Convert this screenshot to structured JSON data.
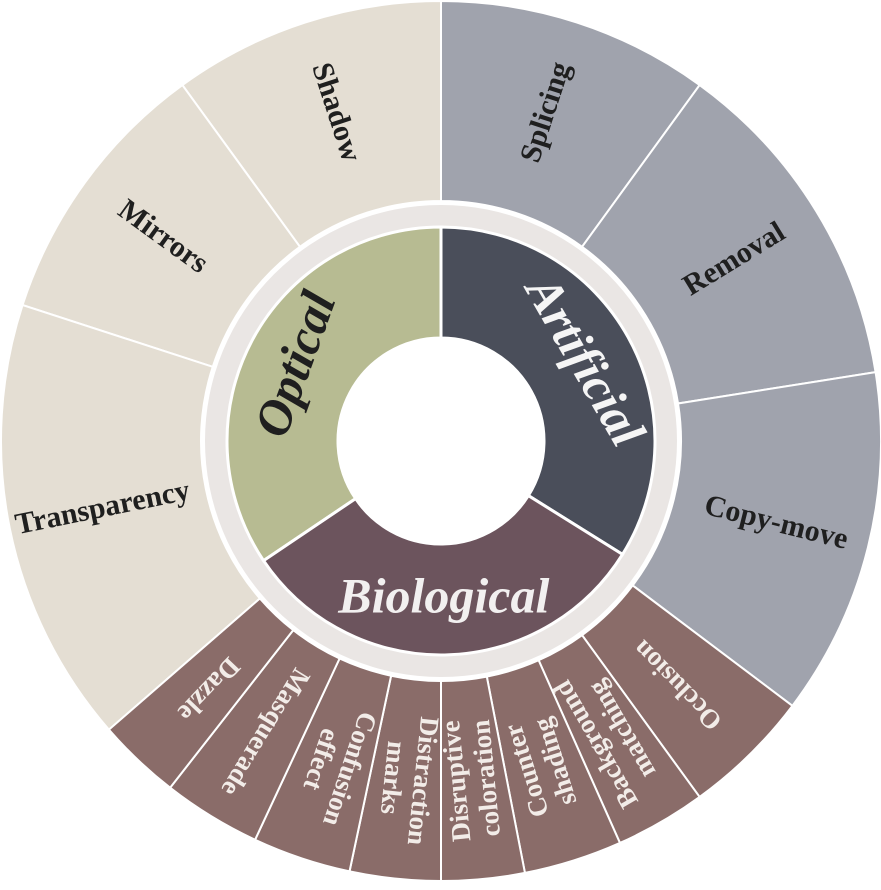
{
  "colors": {
    "optical_inner": "#b7bb92",
    "artificial_inner": "#4a4e5a",
    "biological_inner": "#6c545d",
    "optical_outer": "#e4ded3",
    "artificial_outer": "#a0a3ad",
    "biological_outer": "#8a6c69",
    "ring_gap": "#eae6e4",
    "divider": "#ffffff"
  },
  "categories": [
    {
      "id": "optical",
      "label": "Optical",
      "label_color": "#1f1f1f",
      "items": [
        {
          "lines": [
            "Shadow"
          ]
        },
        {
          "lines": [
            "Mirrors"
          ]
        },
        {
          "lines": [
            "Transparency"
          ]
        }
      ]
    },
    {
      "id": "artificial",
      "label": "Artificial",
      "label_color": "#f5f5f5",
      "items": [
        {
          "lines": [
            "Splicing"
          ]
        },
        {
          "lines": [
            "Removal"
          ]
        },
        {
          "lines": [
            "Copy-move"
          ]
        }
      ]
    },
    {
      "id": "biological",
      "label": "Biological",
      "label_color": "#f2f0f0",
      "items": [
        {
          "lines": [
            "Occlusion"
          ]
        },
        {
          "lines": [
            "Background",
            "matching"
          ]
        },
        {
          "lines": [
            "Counter",
            "shading"
          ]
        },
        {
          "lines": [
            "Disruptive",
            "coloration"
          ]
        },
        {
          "lines": [
            "Distraction",
            "marks"
          ]
        },
        {
          "lines": [
            "Confusion",
            "effect"
          ]
        },
        {
          "lines": [
            "Masquerade"
          ]
        },
        {
          "lines": [
            "Dazzle"
          ]
        }
      ]
    }
  ]
}
